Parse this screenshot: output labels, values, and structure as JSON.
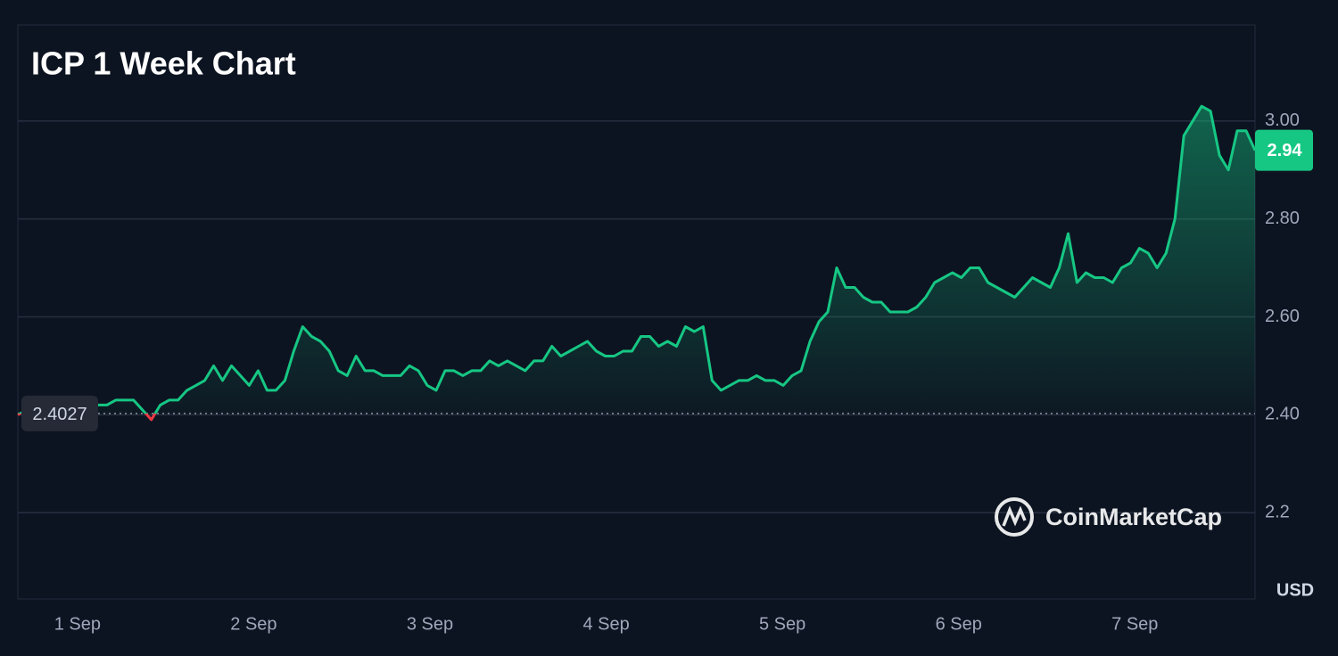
{
  "chart_data": {
    "type": "line",
    "title": "ICP 1 Week Chart",
    "values": [
      2.4,
      2.41,
      2.41,
      2.41,
      2.41,
      2.41,
      2.41,
      2.42,
      2.43,
      2.42,
      2.42,
      2.43,
      2.43,
      2.43,
      2.41,
      2.39,
      2.42,
      2.43,
      2.43,
      2.45,
      2.46,
      2.47,
      2.5,
      2.47,
      2.5,
      2.48,
      2.46,
      2.49,
      2.45,
      2.45,
      2.47,
      2.53,
      2.58,
      2.56,
      2.55,
      2.53,
      2.49,
      2.48,
      2.52,
      2.49,
      2.49,
      2.48,
      2.48,
      2.48,
      2.5,
      2.49,
      2.46,
      2.45,
      2.49,
      2.49,
      2.48,
      2.49,
      2.49,
      2.51,
      2.5,
      2.51,
      2.5,
      2.49,
      2.51,
      2.51,
      2.54,
      2.52,
      2.53,
      2.54,
      2.55,
      2.53,
      2.52,
      2.52,
      2.53,
      2.53,
      2.56,
      2.56,
      2.54,
      2.55,
      2.54,
      2.58,
      2.57,
      2.58,
      2.47,
      2.45,
      2.46,
      2.47,
      2.47,
      2.48,
      2.47,
      2.47,
      2.46,
      2.48,
      2.49,
      2.55,
      2.59,
      2.61,
      2.7,
      2.66,
      2.66,
      2.64,
      2.63,
      2.63,
      2.61,
      2.61,
      2.61,
      2.62,
      2.64,
      2.67,
      2.68,
      2.69,
      2.68,
      2.7,
      2.7,
      2.67,
      2.66,
      2.65,
      2.64,
      2.66,
      2.68,
      2.67,
      2.66,
      2.7,
      2.77,
      2.67,
      2.69,
      2.68,
      2.68,
      2.67,
      2.7,
      2.71,
      2.74,
      2.73,
      2.7,
      2.73,
      2.8,
      2.97,
      3.0,
      3.03,
      3.02,
      2.93,
      2.9,
      2.98,
      2.98,
      2.94
    ],
    "color": "#16c784",
    "down_color": "#ea3943",
    "baseline": 2.4027,
    "xlim": [
      0,
      139
    ],
    "xticks": [
      {
        "value": 6.7,
        "label": "1 Sep"
      },
      {
        "value": 26.5,
        "label": "2 Sep"
      },
      {
        "value": 46.3,
        "label": "3 Sep"
      },
      {
        "value": 66.1,
        "label": "4 Sep"
      },
      {
        "value": 85.9,
        "label": "5 Sep"
      },
      {
        "value": 105.7,
        "label": "6 Sep"
      },
      {
        "value": 125.5,
        "label": "7 Sep"
      }
    ],
    "ylim": [
      2.024,
      3.196
    ],
    "yticks": [
      {
        "value": 3.0,
        "label": "3.00"
      },
      {
        "value": 2.8,
        "label": "2.80"
      },
      {
        "value": 2.6,
        "label": "2.60"
      },
      {
        "value": 2.4,
        "label": "2.40"
      },
      2.2
    ],
    "grid": true,
    "y_unit": "USD",
    "watermark": "CoinMarketCap"
  }
}
